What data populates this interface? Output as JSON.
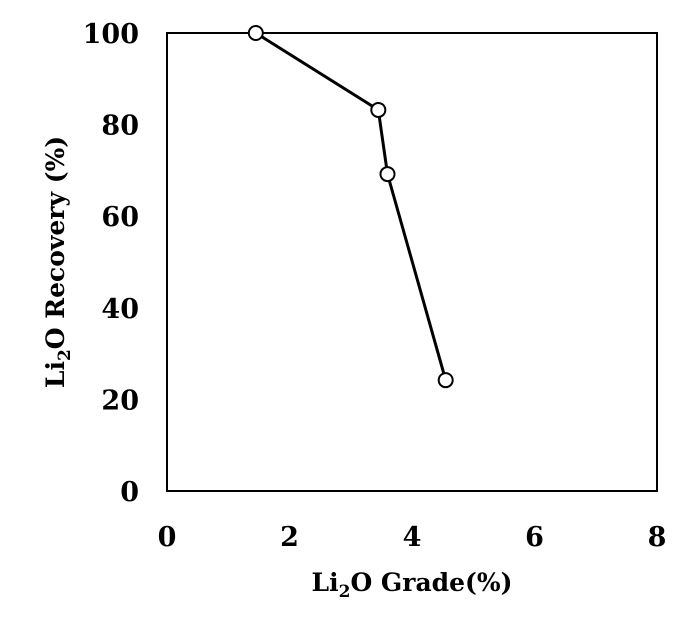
{
  "chart_data": {
    "type": "line",
    "title": "",
    "xlabel": {
      "prefix": "Li",
      "subscript": "2",
      "suffix": "O Grade(%)"
    },
    "ylabel": {
      "prefix": "Li",
      "subscript": "2",
      "suffix": "O Recovery  (%)"
    },
    "xlim": [
      0,
      8
    ],
    "ylim": [
      0,
      100
    ],
    "xticks": [
      "0",
      "2",
      "4",
      "6",
      "8"
    ],
    "yticks": [
      "0",
      "20",
      "40",
      "60",
      "80",
      "100"
    ],
    "grid": false,
    "legend": "none",
    "series": [
      {
        "x": [
          1.45,
          3.45,
          3.6,
          4.55
        ],
        "y": [
          100,
          83.2,
          69.2,
          24.2
        ],
        "marker": "open-circle",
        "color": "#000000"
      }
    ]
  }
}
